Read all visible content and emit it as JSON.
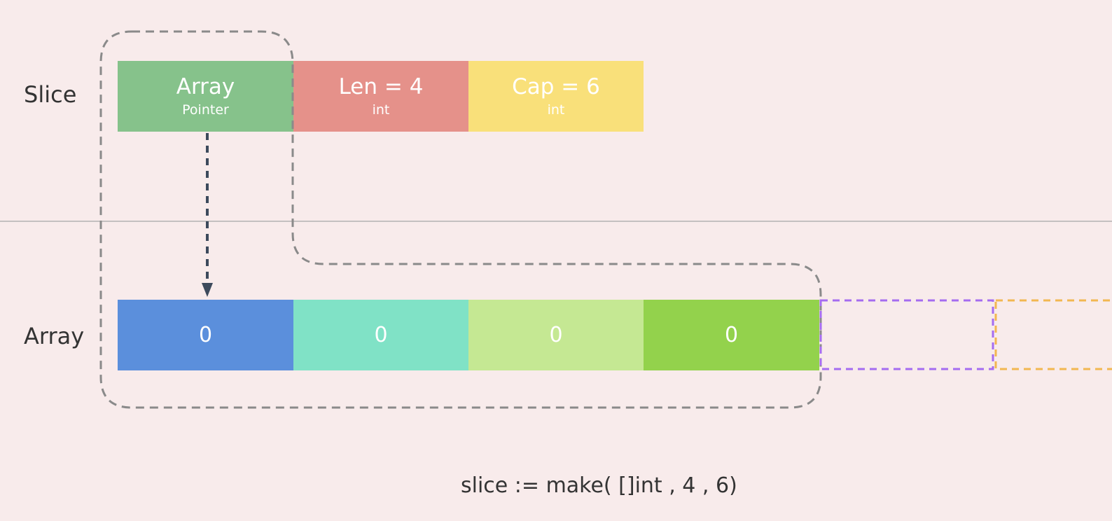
{
  "labels": {
    "slice": "Slice",
    "array": "Array"
  },
  "slice_header": [
    {
      "name": "Array",
      "type": "Pointer",
      "color": "#86c28b"
    },
    {
      "name": "Len = 4",
      "type": "int",
      "color": "#e5918a"
    },
    {
      "name": "Cap = 6",
      "type": "int",
      "color": "#f9e07a"
    }
  ],
  "array_cells": [
    {
      "value": "0",
      "color": "#5b8fdc"
    },
    {
      "value": "0",
      "color": "#80e2c6"
    },
    {
      "value": "0",
      "color": "#c5e893"
    },
    {
      "value": "0",
      "color": "#93d24c"
    }
  ],
  "capacity_slots": [
    {
      "color": "#a56cf0"
    },
    {
      "color": "#f2b751"
    }
  ],
  "code": "slice := make( []int , 4 , 6)"
}
